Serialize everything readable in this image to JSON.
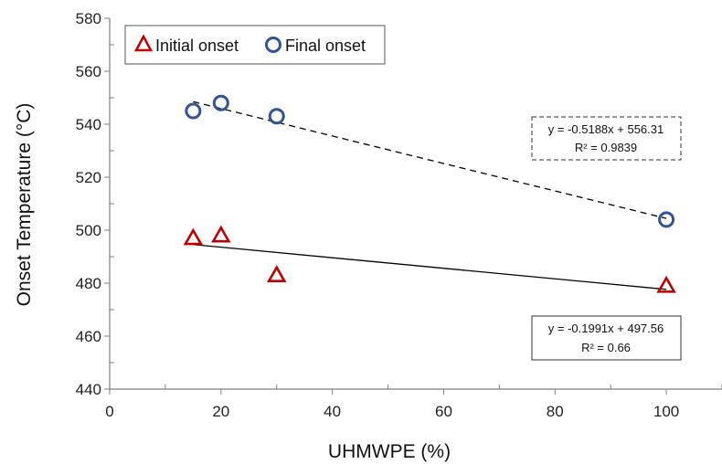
{
  "chart_data": {
    "type": "scatter",
    "title": "",
    "xlabel": "UHMWPE (%)",
    "ylabel": "Onset Temperature (°C)",
    "xlim": [
      0,
      110
    ],
    "ylim": [
      440,
      580
    ],
    "x_ticks": [
      0,
      20,
      40,
      60,
      80,
      100
    ],
    "y_ticks": [
      440,
      460,
      480,
      500,
      520,
      540,
      560,
      580
    ],
    "grid": false,
    "legend_position": "top-left",
    "series": [
      {
        "name": "Initial onset",
        "marker": "triangle",
        "color": "#C00000",
        "x": [
          15,
          20,
          30,
          100
        ],
        "y": [
          497,
          498,
          483,
          479
        ],
        "trendline": {
          "style": "solid",
          "slope": -0.1991,
          "intercept": 497.56,
          "x_range": [
            15,
            100
          ],
          "equation": "y = -0.1991x + 497.56",
          "r2": "R² = 0.66"
        }
      },
      {
        "name": "Final onset",
        "marker": "circle",
        "color": "#2F5597",
        "x": [
          15,
          20,
          30,
          100
        ],
        "y": [
          545,
          548,
          543,
          504
        ],
        "trendline": {
          "style": "dashed",
          "slope": -0.5188,
          "intercept": 556.31,
          "x_range": [
            15,
            100
          ],
          "equation": "y = -0.5188x + 556.31",
          "r2": "R² = 0.9839"
        }
      }
    ]
  }
}
